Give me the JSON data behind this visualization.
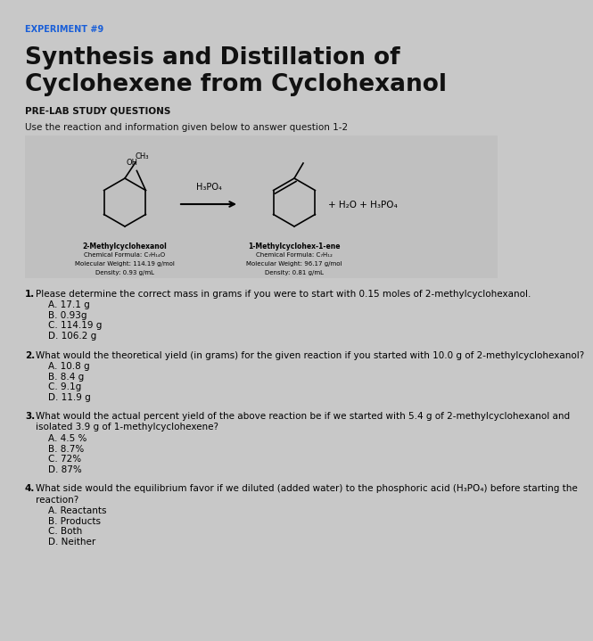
{
  "experiment_label": "EXPERIMENT #9",
  "title_line1": "Synthesis and Distillation of",
  "title_line2": "Cyclohexene from Cyclohexanol",
  "section_header": "PRE-LAB STUDY QUESTIONS",
  "intro_text": "Use the reaction and information given below to answer question 1-2",
  "reactant_name": "2-Methylcyclohexanol",
  "reactant_formula": "Chemical Formula: C₇H₁₄O",
  "reactant_mw": "Molecular Weight: 114.19 g/mol",
  "reactant_density": "Density: 0.93 g/mL",
  "catalyst": "H₃PO₄",
  "product_name": "1-Methylcyclohex-1-ene",
  "product_formula": "Chemical Formula: C₇H₁₂",
  "product_mw": "Molecular Weight: 96.17 g/mol",
  "product_density": "Density: 0.81 g/mL",
  "byproducts": "+ H₂O + H₃PO₄",
  "questions": [
    {
      "number": "1.",
      "text": "Please determine the correct mass in grams if you were to start with 0.15 moles of 2-methylcyclohexanol.",
      "choices": [
        "A. 17.1 g",
        "B. 0.93g",
        "C. 114.19 g",
        "D. 106.2 g"
      ],
      "multiline": false
    },
    {
      "number": "2.",
      "text": "What would the theoretical yield (in grams) for the given reaction if you started with 10.0 g of 2-methylcyclohexanol?",
      "choices": [
        "A. 10.8 g",
        "B. 8.4 g",
        "C. 9.1g",
        "D. 11.9 g"
      ],
      "multiline": false
    },
    {
      "number": "3.",
      "text": "What would the actual percent yield of the above reaction be if we started with 5.4 g of 2-methylcyclohexanol and isolated 3.9 g of 1-methylcyclohexene?",
      "choices": [
        "A. 4.5 %",
        "B. 8.7%",
        "C. 72%",
        "D. 87%"
      ],
      "multiline": true,
      "text_line2": "isolated 3.9 g of 1-methylcyclohexene?"
    },
    {
      "number": "4.",
      "text": "What side would the equilibrium favor if we diluted (added water) to the phosphoric acid (H₃PO₄) before starting the reaction?",
      "choices": [
        "A. Reactants",
        "B. Products",
        "C. Both",
        "D. Neither"
      ],
      "multiline": true,
      "text_line2": "reaction?"
    }
  ],
  "page_bg": "#c8c8c8",
  "box_bg": "#c0c0c0",
  "experiment_color": "#1a5fd8",
  "title_color": "#111111",
  "text_color": "#111111"
}
